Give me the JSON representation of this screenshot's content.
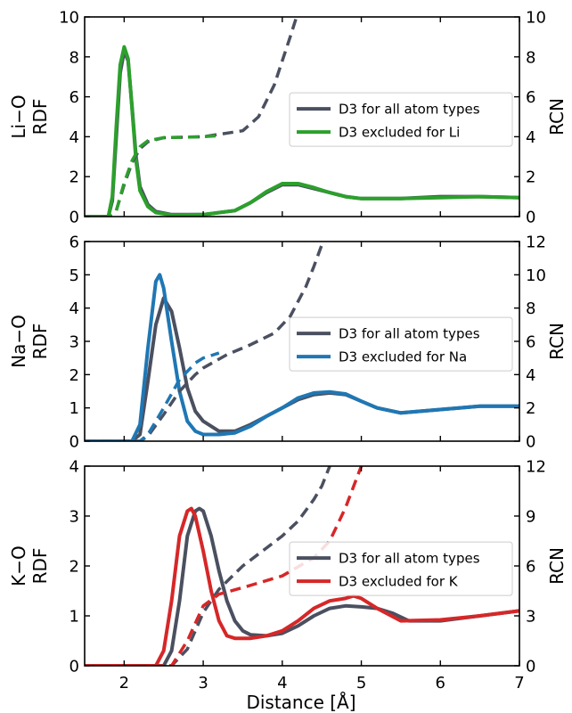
{
  "figure": {
    "xlabel": "Distance [Å]"
  },
  "colors": {
    "all_atoms": "#4b5060",
    "li": "#2ca02c",
    "na": "#1f77b4",
    "k": "#d62728"
  },
  "chart_data": [
    {
      "type": "line",
      "ylabel_left": "Li−O\nRDF",
      "ylabel_right": "RCN",
      "xlim": [
        1.5,
        7
      ],
      "ylim_left": [
        0,
        10
      ],
      "ylim_right": [
        0,
        10
      ],
      "xticks": [
        2,
        3,
        4,
        5,
        6,
        7
      ],
      "yticks_left": [
        0,
        2,
        4,
        6,
        8,
        10
      ],
      "yticks_right": [
        0,
        2,
        4,
        6,
        8,
        10
      ],
      "legend_position": "center-right",
      "series": [
        {
          "name": "D3 for all atom types",
          "color_key": "all_atoms",
          "axis": "left",
          "style": "solid",
          "x": [
            1.5,
            1.8,
            1.85,
            1.9,
            1.95,
            2.0,
            2.05,
            2.1,
            2.15,
            2.2,
            2.3,
            2.4,
            2.6,
            3.0,
            3.4,
            3.6,
            3.8,
            4.0,
            4.2,
            4.4,
            4.6,
            4.8,
            5.0,
            5.5,
            6.0,
            6.5,
            7.0
          ],
          "y": [
            0,
            0,
            0.8,
            4.0,
            7.2,
            8.3,
            7.8,
            5.5,
            3.0,
            1.5,
            0.6,
            0.25,
            0.1,
            0.1,
            0.3,
            0.7,
            1.2,
            1.6,
            1.6,
            1.4,
            1.2,
            1.0,
            0.9,
            0.9,
            1.0,
            1.0,
            0.95
          ]
        },
        {
          "name": "D3 excluded for Li",
          "color_key": "li",
          "axis": "left",
          "style": "solid",
          "x": [
            1.5,
            1.8,
            1.85,
            1.9,
            1.95,
            2.0,
            2.05,
            2.1,
            2.15,
            2.2,
            2.3,
            2.4,
            2.6,
            3.0,
            3.4,
            3.6,
            3.8,
            4.0,
            4.2,
            4.4,
            4.6,
            4.8,
            5.0,
            5.5,
            6.0,
            6.5,
            7.0
          ],
          "y": [
            0,
            0,
            1.0,
            4.5,
            7.6,
            8.5,
            7.9,
            5.4,
            2.8,
            1.3,
            0.5,
            0.2,
            0.08,
            0.1,
            0.3,
            0.7,
            1.25,
            1.65,
            1.65,
            1.45,
            1.2,
            1.0,
            0.9,
            0.9,
            0.95,
            1.0,
            0.95
          ]
        },
        {
          "name": "",
          "color_key": "all_atoms",
          "axis": "right",
          "style": "dashed",
          "x": [
            1.5,
            1.8,
            1.9,
            2.0,
            2.1,
            2.2,
            2.3,
            2.5,
            3.0,
            3.5,
            3.7,
            3.9,
            4.0,
            4.1,
            4.18
          ],
          "y": [
            0,
            0,
            0.3,
            1.6,
            2.7,
            3.4,
            3.75,
            3.95,
            4.0,
            4.3,
            5.0,
            6.6,
            7.8,
            9.0,
            10
          ]
        },
        {
          "name": "",
          "color_key": "li",
          "axis": "right",
          "style": "dashed",
          "x": [
            1.5,
            1.8,
            1.9,
            2.0,
            2.1,
            2.2,
            2.3,
            2.5,
            3.0,
            3.2
          ],
          "y": [
            0,
            0,
            0.3,
            1.7,
            2.8,
            3.5,
            3.8,
            3.95,
            4.0,
            4.05
          ]
        }
      ]
    },
    {
      "type": "line",
      "ylabel_left": "Na−O\nRDF",
      "ylabel_right": "RCN",
      "xlim": [
        1.5,
        7
      ],
      "ylim_left": [
        0,
        6
      ],
      "ylim_right": [
        0,
        12
      ],
      "xticks": [
        2,
        3,
        4,
        5,
        6,
        7
      ],
      "yticks_left": [
        0,
        1,
        2,
        3,
        4,
        5,
        6
      ],
      "yticks_right": [
        0,
        2,
        4,
        6,
        8,
        10,
        12
      ],
      "legend_position": "center-right",
      "series": [
        {
          "name": "D3 for all atom types",
          "color_key": "all_atoms",
          "axis": "left",
          "style": "solid",
          "x": [
            1.5,
            2.1,
            2.2,
            2.3,
            2.4,
            2.5,
            2.6,
            2.7,
            2.8,
            2.9,
            3.0,
            3.2,
            3.4,
            3.6,
            3.8,
            4.0,
            4.2,
            4.4,
            4.6,
            4.8,
            5.0,
            5.2,
            5.5,
            6.0,
            6.5,
            7.0
          ],
          "y": [
            0,
            0,
            0.2,
            1.8,
            3.5,
            4.3,
            3.9,
            2.8,
            1.6,
            0.9,
            0.6,
            0.3,
            0.3,
            0.5,
            0.75,
            1.0,
            1.25,
            1.4,
            1.45,
            1.4,
            1.2,
            1.0,
            0.85,
            0.95,
            1.05,
            1.05
          ]
        },
        {
          "name": "D3 excluded for Na",
          "color_key": "na",
          "axis": "left",
          "style": "solid",
          "x": [
            1.5,
            2.1,
            2.2,
            2.3,
            2.4,
            2.45,
            2.5,
            2.6,
            2.7,
            2.8,
            2.9,
            3.0,
            3.2,
            3.4,
            3.6,
            3.8,
            4.0,
            4.2,
            4.4,
            4.6,
            4.8,
            5.0,
            5.2,
            5.5,
            6.0,
            6.5,
            7.0
          ],
          "y": [
            0,
            0,
            0.5,
            2.8,
            4.8,
            5.0,
            4.6,
            3.0,
            1.5,
            0.6,
            0.3,
            0.2,
            0.2,
            0.25,
            0.45,
            0.75,
            1.0,
            1.3,
            1.45,
            1.48,
            1.42,
            1.2,
            1.0,
            0.85,
            0.95,
            1.05,
            1.05
          ]
        },
        {
          "name": "",
          "color_key": "all_atoms",
          "axis": "right",
          "style": "dashed",
          "x": [
            1.5,
            2.2,
            2.3,
            2.5,
            2.7,
            2.9,
            3.0,
            3.3,
            3.6,
            3.9,
            4.1,
            4.3,
            4.4,
            4.5
          ],
          "y": [
            0,
            0,
            0.3,
            1.6,
            3.0,
            4.0,
            4.4,
            5.2,
            5.8,
            6.5,
            7.5,
            9.3,
            10.5,
            11.8
          ]
        },
        {
          "name": "",
          "color_key": "na",
          "axis": "right",
          "style": "dashed",
          "x": [
            1.5,
            2.2,
            2.3,
            2.5,
            2.7,
            2.9,
            3.0,
            3.2
          ],
          "y": [
            0,
            0,
            0.4,
            2.0,
            3.7,
            4.7,
            5.0,
            5.3
          ]
        }
      ]
    },
    {
      "type": "line",
      "ylabel_left": "K−O\nRDF",
      "ylabel_right": "RCN",
      "xlim": [
        1.5,
        7
      ],
      "ylim_left": [
        0,
        4
      ],
      "ylim_right": [
        0,
        12
      ],
      "xticks": [
        2,
        3,
        4,
        5,
        6,
        7
      ],
      "yticks_left": [
        0,
        1,
        2,
        3,
        4
      ],
      "yticks_right": [
        0,
        3,
        6,
        9,
        12
      ],
      "legend_position": "center-right",
      "series": [
        {
          "name": "D3 for all atom types",
          "color_key": "all_atoms",
          "axis": "left",
          "style": "solid",
          "x": [
            1.5,
            2.5,
            2.6,
            2.7,
            2.8,
            2.9,
            2.95,
            3.0,
            3.1,
            3.2,
            3.3,
            3.4,
            3.5,
            3.6,
            3.8,
            4.0,
            4.2,
            4.4,
            4.6,
            4.8,
            5.0,
            5.2,
            5.4,
            5.6,
            6.0,
            6.5,
            7.0
          ],
          "y": [
            0,
            0,
            0.3,
            1.3,
            2.6,
            3.1,
            3.15,
            3.1,
            2.6,
            1.9,
            1.3,
            0.9,
            0.7,
            0.62,
            0.6,
            0.65,
            0.8,
            1.0,
            1.15,
            1.2,
            1.18,
            1.15,
            1.05,
            0.9,
            0.9,
            1.0,
            1.1
          ]
        },
        {
          "name": "D3 excluded for K",
          "color_key": "k",
          "axis": "left",
          "style": "solid",
          "x": [
            1.5,
            2.4,
            2.5,
            2.6,
            2.7,
            2.8,
            2.85,
            2.9,
            3.0,
            3.1,
            3.2,
            3.3,
            3.4,
            3.5,
            3.6,
            3.8,
            4.0,
            4.2,
            4.4,
            4.6,
            4.8,
            4.9,
            5.0,
            5.2,
            5.5,
            6.0,
            6.5,
            7.0
          ],
          "y": [
            0,
            0,
            0.3,
            1.3,
            2.6,
            3.1,
            3.15,
            3.0,
            2.3,
            1.5,
            0.9,
            0.6,
            0.55,
            0.55,
            0.55,
            0.6,
            0.7,
            0.9,
            1.15,
            1.3,
            1.35,
            1.4,
            1.35,
            1.15,
            0.9,
            0.92,
            1.0,
            1.1
          ]
        },
        {
          "name": "",
          "color_key": "all_atoms",
          "axis": "right",
          "style": "dashed",
          "x": [
            1.5,
            2.6,
            2.8,
            3.0,
            3.2,
            3.5,
            4.0,
            4.2,
            4.4,
            4.5,
            4.6
          ],
          "y": [
            0,
            0,
            1.0,
            3.2,
            4.6,
            6.0,
            7.8,
            8.7,
            10.0,
            10.8,
            12.0
          ]
        },
        {
          "name": "",
          "color_key": "k",
          "axis": "right",
          "style": "dashed",
          "x": [
            1.5,
            2.6,
            2.8,
            3.0,
            3.2,
            3.5,
            4.0,
            4.4,
            4.6,
            4.8,
            5.0
          ],
          "y": [
            0,
            0,
            1.5,
            3.6,
            4.3,
            4.7,
            5.4,
            6.5,
            7.5,
            9.5,
            12.0
          ]
        }
      ]
    }
  ]
}
